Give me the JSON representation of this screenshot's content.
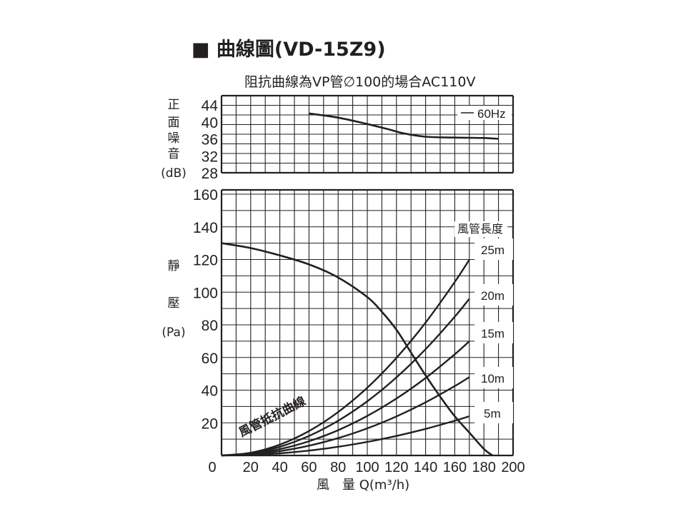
{
  "chart_data": [
    {
      "type": "line",
      "title": "■ 曲線圖(VD-15Z9)",
      "subtitle": "阻抗曲線為VP管∅100的場合AC110V",
      "ylabel": [
        "正",
        "面",
        "噪",
        "音",
        "(dB)"
      ],
      "yticks": [
        "44",
        "40",
        "36",
        "32",
        "28"
      ],
      "xlim": [
        0,
        200
      ],
      "ylim": [
        28,
        44
      ],
      "grid": true,
      "legend": {
        "placement": "top-right",
        "entries": [
          "60Hz"
        ]
      },
      "series": [
        {
          "name": "60Hz",
          "x": [
            60,
            80,
            100,
            115,
            125,
            140,
            160,
            180,
            190
          ],
          "y": [
            42,
            41,
            39.5,
            38.2,
            37.3,
            36.5,
            36.3,
            36.2,
            36
          ]
        }
      ]
    },
    {
      "type": "line",
      "ylabel": [
        "靜",
        "壓",
        "(Pa)"
      ],
      "xlabel": "風　量 Q(m³/h)",
      "xticks": [
        "0",
        "20",
        "40",
        "60",
        "80",
        "100",
        "120",
        "140",
        "160",
        "180",
        "200"
      ],
      "yticks": [
        "160",
        "140",
        "120",
        "100",
        "80",
        "60",
        "40",
        "20"
      ],
      "xlim": [
        0,
        200
      ],
      "ylim": [
        0,
        160
      ],
      "grid": true,
      "curve_label": "風管抵抗曲線",
      "duct_length_title": "風管長度",
      "series": [
        {
          "kind": "fan",
          "x": [
            0,
            20,
            40,
            60,
            80,
            100,
            110,
            120,
            130,
            140,
            150,
            160,
            170,
            180,
            186
          ],
          "y": [
            130,
            127,
            122.5,
            117,
            109,
            97,
            88,
            77,
            63,
            49,
            36,
            24,
            14,
            4,
            0
          ]
        },
        {
          "name": "25m",
          "k": 0.00415
        },
        {
          "name": "20m",
          "k": 0.00332
        },
        {
          "name": "15m",
          "k": 0.00242
        },
        {
          "name": "10m",
          "k": 0.00166
        },
        {
          "name": "5m",
          "k": 0.00083
        }
      ],
      "resistance_x": [
        0,
        20,
        40,
        60,
        80,
        100,
        120,
        140,
        160,
        170
      ]
    }
  ]
}
